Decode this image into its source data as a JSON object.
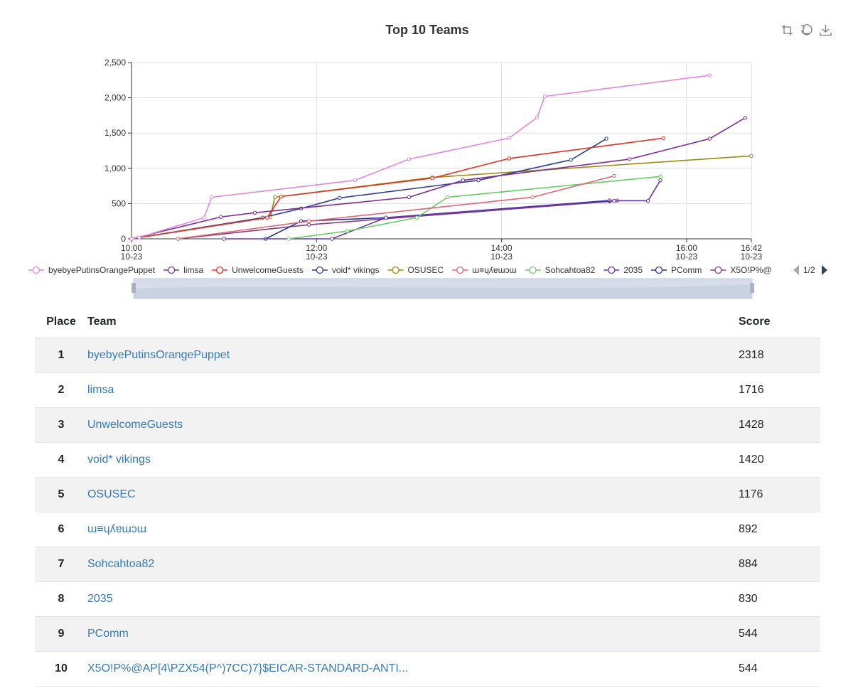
{
  "chart_data": {
    "type": "line",
    "title": "Top 10 Teams",
    "xlabel": "",
    "ylabel": "",
    "x_range": [
      "10:00",
      "16:42"
    ],
    "ylim": [
      0,
      2500
    ],
    "y_ticks": [
      "0",
      "500",
      "1,000",
      "1,500",
      "2,000",
      "2,500"
    ],
    "x_ticks": [
      {
        "time": "10:00",
        "date": "10-23"
      },
      {
        "time": "12:00",
        "date": "10-23"
      },
      {
        "time": "14:00",
        "date": "10-23"
      },
      {
        "time": "16:00",
        "date": "10-23"
      },
      {
        "time": "16:42",
        "date": "10-23"
      }
    ],
    "grid": true,
    "legend_position": "below-chart",
    "legend_page": "1/2",
    "series": [
      {
        "name": "byebyePutinsOrangePuppet",
        "color": "#dd88dd",
        "points": [
          [
            "10:00",
            0
          ],
          [
            "10:05",
            20
          ],
          [
            "10:47",
            300
          ],
          [
            "10:52",
            590
          ],
          [
            "12:25",
            830
          ],
          [
            "13:00",
            1130
          ],
          [
            "14:05",
            1430
          ],
          [
            "14:23",
            1720
          ],
          [
            "14:28",
            2020
          ],
          [
            "16:15",
            2318
          ]
        ]
      },
      {
        "name": "limsa",
        "color": "#7b2f8e",
        "points": [
          [
            "10:00",
            0
          ],
          [
            "10:58",
            310
          ],
          [
            "11:20",
            370
          ],
          [
            "13:00",
            590
          ],
          [
            "13:35",
            830
          ],
          [
            "15:23",
            1130
          ],
          [
            "16:15",
            1420
          ],
          [
            "16:38",
            1716
          ]
        ]
      },
      {
        "name": "UnwelcomeGuests",
        "color": "#dd3322",
        "points": [
          [
            "10:00",
            0
          ],
          [
            "11:28",
            300
          ],
          [
            "11:37",
            600
          ],
          [
            "13:15",
            860
          ],
          [
            "14:05",
            1140
          ],
          [
            "15:45",
            1428
          ]
        ]
      },
      {
        "name": "void* vikings",
        "color": "#2f3a8f",
        "points": [
          [
            "10:00",
            0
          ],
          [
            "11:25",
            300
          ],
          [
            "11:50",
            430
          ],
          [
            "12:15",
            580
          ],
          [
            "13:45",
            830
          ],
          [
            "14:45",
            1120
          ],
          [
            "15:08",
            1420
          ]
        ]
      },
      {
        "name": "OSUSEC",
        "color": "#998811",
        "points": [
          [
            "10:00",
            0
          ],
          [
            "11:30",
            310
          ],
          [
            "11:33",
            590
          ],
          [
            "13:15",
            870
          ],
          [
            "16:42",
            1176
          ]
        ]
      },
      {
        "name": "ɯ≡ɥʎɐɯɔɯ",
        "color": "#dd6677",
        "points": [
          [
            "10:30",
            0
          ],
          [
            "11:55",
            250
          ],
          [
            "14:20",
            590
          ],
          [
            "15:13",
            892
          ]
        ]
      },
      {
        "name": "Sohcahtoa82",
        "color": "#66cc66",
        "points": [
          [
            "11:42",
            0
          ],
          [
            "12:20",
            110
          ],
          [
            "13:05",
            300
          ],
          [
            "13:25",
            590
          ],
          [
            "15:43",
            884
          ]
        ]
      },
      {
        "name": "2035",
        "color": "#6633aa",
        "points": [
          [
            "11:00",
            0
          ],
          [
            "12:10",
            0
          ],
          [
            "12:45",
            300
          ],
          [
            "15:13",
            540
          ],
          [
            "15:35",
            540
          ],
          [
            "15:43",
            830
          ]
        ]
      },
      {
        "name": "PComm",
        "color": "#223399",
        "points": [
          [
            "11:27",
            0
          ],
          [
            "11:50",
            250
          ],
          [
            "12:45",
            300
          ],
          [
            "15:10",
            544
          ]
        ]
      },
      {
        "name": "X5O!P%@AP[4\\PZX54(P^)7CC)7}$EICAR-STANDARD-ANTI...",
        "color": "#8a3a7a",
        "points": [
          [
            "10:30",
            0
          ],
          [
            "11:55",
            200
          ],
          [
            "15:10",
            530
          ],
          [
            "15:15",
            544
          ]
        ]
      }
    ]
  },
  "legend_labels": [
    "byebyePutinsOrangePuppet",
    "limsa",
    "UnwelcomeGuests",
    "void* vikings",
    "OSUSEC",
    "ɯ≡ɥʎɐɯɔɯ",
    "Sohcahtoa82",
    "2035",
    "PComm",
    "X5O!P%@"
  ],
  "toolbox": {
    "icons": [
      "zoom-icon",
      "zoom-reset-icon",
      "download-icon"
    ]
  },
  "table": {
    "headers": {
      "place": "Place",
      "team": "Team",
      "score": "Score"
    },
    "rows": [
      {
        "place": "1",
        "team": "byebyePutinsOrangePuppet",
        "score": "2318"
      },
      {
        "place": "2",
        "team": "limsa",
        "score": "1716"
      },
      {
        "place": "3",
        "team": "UnwelcomeGuests",
        "score": "1428"
      },
      {
        "place": "4",
        "team": "void* vikings",
        "score": "1420"
      },
      {
        "place": "5",
        "team": "OSUSEC",
        "score": "1176"
      },
      {
        "place": "6",
        "team": "ɯ≡ɥʎɐɯɔɯ",
        "score": "892"
      },
      {
        "place": "7",
        "team": "Sohcahtoa82",
        "score": "884"
      },
      {
        "place": "8",
        "team": "2035",
        "score": "830"
      },
      {
        "place": "9",
        "team": "PComm",
        "score": "544"
      },
      {
        "place": "10",
        "team": "X5O!P%@AP[4\\PZX54(P^)7CC)7}$EICAR-STANDARD-ANTI...",
        "score": "544"
      }
    ]
  }
}
